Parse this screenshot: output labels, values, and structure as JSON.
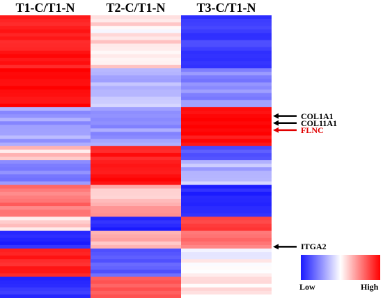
{
  "chart_data": {
    "type": "heatmap",
    "columns": [
      "T1-C/T1-N",
      "T2-C/T1-N",
      "T3-C/T1-N"
    ],
    "value_range": [
      -1,
      1
    ],
    "colors": {
      "low": "#1a1aff",
      "mid": "#ffffff",
      "high": "#ff0000"
    },
    "blocks": [
      {
        "rows": 15,
        "values": [
          0.9,
          0.1,
          -0.85
        ]
      },
      {
        "rows": 11,
        "values": [
          0.95,
          -0.3,
          -0.5
        ]
      },
      {
        "rows": 11,
        "values": [
          -0.4,
          -0.45,
          0.95
        ]
      },
      {
        "rows": 4,
        "values": [
          0.2,
          0.9,
          -0.7
        ]
      },
      {
        "rows": 7,
        "values": [
          -0.5,
          0.95,
          -0.3
        ]
      },
      {
        "rows": 9,
        "values": [
          0.55,
          0.3,
          -0.95
        ]
      },
      {
        "rows": 4,
        "values": [
          0.1,
          -0.95,
          0.7
        ]
      },
      {
        "rows": 5,
        "values": [
          -0.95,
          0.25,
          0.55
        ]
      },
      {
        "rows": 8,
        "values": [
          0.85,
          -0.7,
          0.05
        ]
      },
      {
        "rows": 6,
        "values": [
          -0.9,
          0.7,
          0.15
        ]
      }
    ],
    "annotated_genes": [
      {
        "name": "COL1A1",
        "row": 28,
        "color": "#000000"
      },
      {
        "name": "COL11A1",
        "row": 30,
        "color": "#000000"
      },
      {
        "name": "FLNC",
        "row": 32,
        "color": "#e00000"
      },
      {
        "name": "ITGA2",
        "row": 65,
        "color": "#000000"
      }
    ],
    "legend": {
      "low_label": "Low",
      "high_label": "High"
    }
  }
}
